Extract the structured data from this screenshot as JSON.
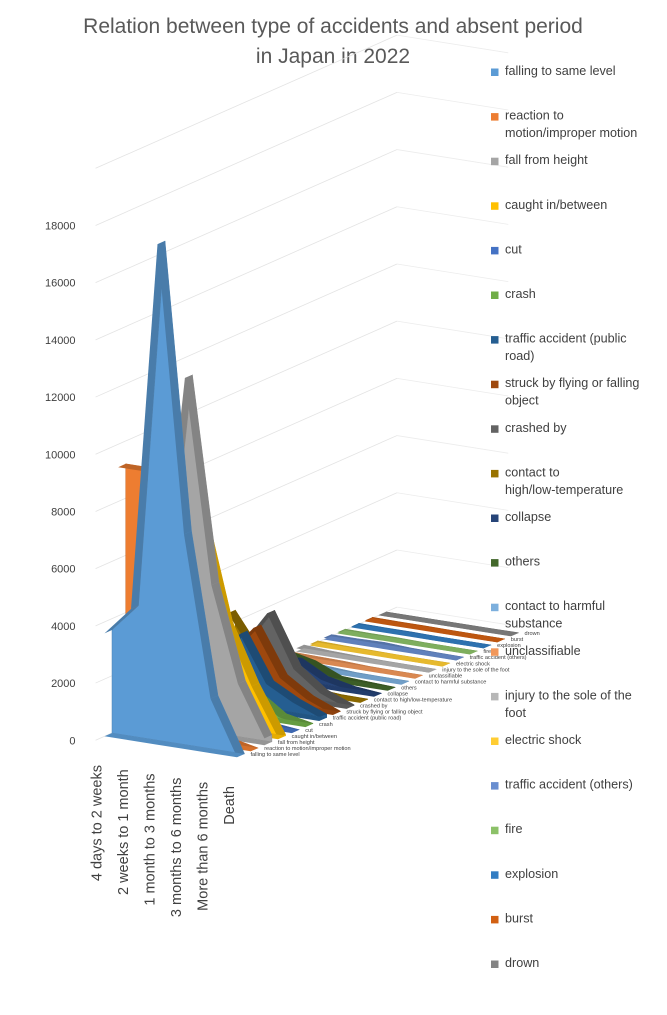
{
  "chart_data": {
    "type": "area",
    "title_lines": [
      "Relation between type of accidents and absent period",
      "in Japan in 2022"
    ],
    "ylim": [
      0,
      18000
    ],
    "ytick_step": 2000,
    "categories": [
      "4 days to 2 weeks",
      "2 weeks to 1 month",
      "1 month to 3 months",
      "3 months to 6 months",
      "More than 6 months",
      "Death"
    ],
    "legend_position": "right",
    "series": [
      {
        "name": "falling to same level",
        "color": "#5B9BD5",
        "values": [
          3600,
          4600,
          17500,
          7500,
          1900,
          10
        ]
      },
      {
        "name": "reaction to motion/improper motion",
        "color": "#ED7D31",
        "values": [
          9200,
          9200,
          2100,
          500,
          200,
          0
        ]
      },
      {
        "name": "fall from height",
        "color": "#A5A5A5",
        "values": [
          600,
          3700,
          12400,
          5300,
          2000,
          240
        ]
      },
      {
        "name": "caught in/between",
        "color": "#FFC000",
        "values": [
          4200,
          5700,
          7500,
          3700,
          1700,
          50
        ]
      },
      {
        "name": "cut",
        "color": "#4472C4",
        "values": [
          3800,
          2200,
          1000,
          250,
          100,
          5
        ]
      },
      {
        "name": "crash",
        "color": "#70AD47",
        "values": [
          1500,
          1600,
          2700,
          850,
          200,
          15
        ]
      },
      {
        "name": "traffic accident (public road)",
        "color": "#255E91",
        "values": [
          1200,
          1400,
          2600,
          1000,
          500,
          130
        ]
      },
      {
        "name": "struck by flying or falling object",
        "color": "#9E480E",
        "values": [
          1100,
          1500,
          2600,
          1000,
          400,
          20
        ]
      },
      {
        "name": "crashed by",
        "color": "#636363",
        "values": [
          1100,
          1600,
          2900,
          1100,
          400,
          30
        ]
      },
      {
        "name": "contact to high/low-temperature",
        "color": "#997300",
        "values": [
          2400,
          1100,
          600,
          100,
          30,
          20
        ]
      },
      {
        "name": "collapse",
        "color": "#264478",
        "values": [
          700,
          700,
          800,
          300,
          100,
          10
        ]
      },
      {
        "name": "others",
        "color": "#43682B",
        "values": [
          1100,
          700,
          500,
          100,
          50,
          10
        ]
      },
      {
        "name": "contact to harmful substance",
        "color": "#7CAFDD",
        "values": [
          350,
          150,
          80,
          20,
          10,
          10
        ]
      },
      {
        "name": "unclassifiable",
        "color": "#F1975A",
        "values": [
          100,
          80,
          60,
          20,
          10,
          5
        ]
      },
      {
        "name": "injury to the sole of the foot",
        "color": "#B7B7B7",
        "values": [
          120,
          60,
          30,
          10,
          5,
          0
        ]
      },
      {
        "name": "electric shock",
        "color": "#FFCD33",
        "values": [
          50,
          30,
          20,
          5,
          5,
          5
        ]
      },
      {
        "name": "traffic accident (others)",
        "color": "#698ED0",
        "values": [
          60,
          60,
          80,
          30,
          15,
          5
        ]
      },
      {
        "name": "fire",
        "color": "#8CC168",
        "values": [
          40,
          30,
          30,
          10,
          5,
          5
        ]
      },
      {
        "name": "explosion",
        "color": "#327DC2",
        "values": [
          30,
          20,
          20,
          5,
          5,
          5
        ]
      },
      {
        "name": "burst",
        "color": "#D26012",
        "values": [
          30,
          20,
          20,
          10,
          5,
          5
        ]
      },
      {
        "name": "drown",
        "color": "#848484",
        "values": [
          5,
          5,
          5,
          5,
          5,
          10
        ]
      }
    ],
    "depth_axis_labels": [
      "falling to same level",
      "reaction to motion/improper motion",
      "fall from height",
      "caught in/between",
      "cut",
      "crash",
      "traffic accident (public road)",
      "struck by flying or falling object",
      "crashed by",
      "contact to high/low-temperature",
      "collapse",
      "others",
      "contact to harmful substance",
      "unclassifiable",
      "injury to the sole of the foot",
      "electric shock",
      "traffic accident (others)",
      "fire",
      "explosion",
      "burst",
      "drown"
    ]
  }
}
